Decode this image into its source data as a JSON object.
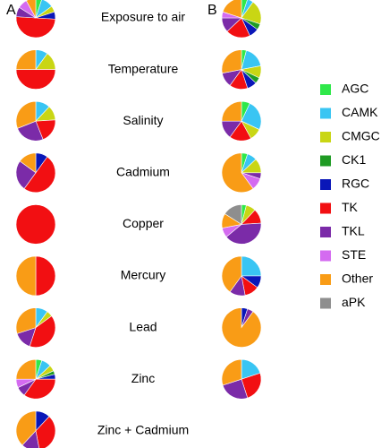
{
  "chart_data": {
    "type": "pie",
    "panel_labels": [
      "A",
      "B"
    ],
    "rows": [
      "Exposure to air",
      "Temperature",
      "Salinity",
      "Cadmium",
      "Copper",
      "Mercury",
      "Lead",
      "Zinc",
      "Zinc + Cadmium"
    ],
    "legend": [
      {
        "name": "AGC",
        "color": "#2FE84A"
      },
      {
        "name": "CAMK",
        "color": "#39C5F3"
      },
      {
        "name": "CMGC",
        "color": "#C9D614"
      },
      {
        "name": "CK1",
        "color": "#1F9B24"
      },
      {
        "name": "RGC",
        "color": "#0A17B8"
      },
      {
        "name": "TK",
        "color": "#F20F12"
      },
      {
        "name": "TKL",
        "color": "#7B2BA8"
      },
      {
        "name": "STE",
        "color": "#D46BF0"
      },
      {
        "name": "Other",
        "color": "#F99C16"
      },
      {
        "name": "aPK",
        "color": "#8E8E8E"
      }
    ],
    "series": [
      {
        "name": "A",
        "pies": [
          {
            "row": "Exposure to air",
            "values": [
              0.05,
              0.1,
              0.05,
              0,
              0.06,
              0.5,
              0.08,
              0.08,
              0.08,
              0
            ]
          },
          {
            "row": "Temperature",
            "values": [
              0,
              0.1,
              0.15,
              0,
              0,
              0.5,
              0,
              0,
              0.25,
              0
            ]
          },
          {
            "row": "Salinity",
            "values": [
              0,
              0.12,
              0.12,
              0,
              0,
              0.2,
              0.25,
              0,
              0.31,
              0
            ]
          },
          {
            "row": "Cadmium",
            "values": [
              0,
              0,
              0,
              0,
              0.1,
              0.5,
              0.25,
              0,
              0.15,
              0
            ]
          },
          {
            "row": "Copper",
            "values": [
              0,
              0,
              0,
              0,
              0,
              1.0,
              0,
              0,
              0,
              0
            ]
          },
          {
            "row": "Mercury",
            "values": [
              0,
              0,
              0,
              0,
              0,
              0.5,
              0,
              0,
              0.5,
              0
            ]
          },
          {
            "row": "Lead",
            "values": [
              0,
              0.1,
              0.05,
              0,
              0,
              0.4,
              0.15,
              0,
              0.3,
              0
            ]
          },
          {
            "row": "Zinc",
            "values": [
              0.05,
              0.08,
              0.05,
              0.03,
              0.04,
              0.35,
              0.08,
              0.07,
              0.25,
              0
            ]
          },
          {
            "row": "Zinc + Cadmium",
            "values": [
              0,
              0,
              0,
              0,
              0.12,
              0.35,
              0.15,
              0,
              0.38,
              0
            ]
          }
        ]
      },
      {
        "name": "B",
        "pies": [
          {
            "row": "Exposure to air",
            "values": [
              0.05,
              0.05,
              0.2,
              0.05,
              0.08,
              0.2,
              0.12,
              0.05,
              0.2,
              0
            ]
          },
          {
            "row": "Temperature",
            "values": [
              0.04,
              0.18,
              0.1,
              0.05,
              0.08,
              0.15,
              0.12,
              0,
              0.28,
              0
            ]
          },
          {
            "row": "Salinity",
            "values": [
              0.07,
              0.25,
              0.1,
              0,
              0,
              0.18,
              0.15,
              0,
              0.25,
              0
            ]
          },
          {
            "row": "Cadmium",
            "values": [
              0.05,
              0.08,
              0.12,
              0,
              0,
              0,
              0.05,
              0.1,
              0.6,
              0
            ]
          },
          {
            "row": "Copper",
            "values": [
              0.04,
              0,
              0.08,
              0,
              0,
              0.12,
              0.4,
              0.08,
              0.12,
              0.16
            ]
          },
          {
            "row": "Mercury",
            "values": [
              0,
              0.25,
              0,
              0,
              0.1,
              0.12,
              0.13,
              0,
              0.4,
              0
            ]
          },
          {
            "row": "Lead",
            "values": [
              0,
              0,
              0,
              0,
              0.05,
              0,
              0.05,
              0,
              0.9,
              0
            ]
          },
          {
            "row": "Zinc",
            "values": [
              0,
              0.2,
              0,
              0,
              0,
              0.25,
              0.25,
              0,
              0.3,
              0
            ]
          },
          {
            "row": "Zinc + Cadmium",
            "values": [
              0,
              0,
              0,
              0,
              0,
              0,
              0,
              0,
              0,
              0
            ]
          }
        ]
      }
    ]
  }
}
